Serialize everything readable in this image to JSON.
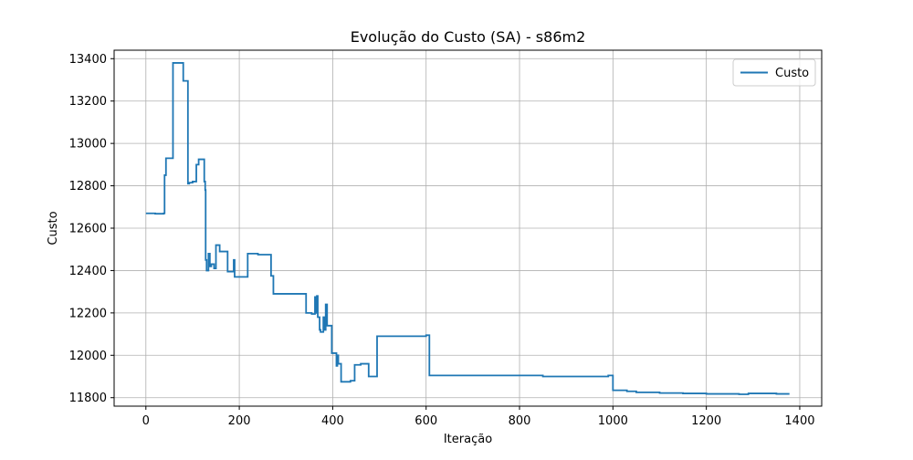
{
  "chart_data": {
    "type": "line",
    "title": "Evolução do Custo (SA) - s86m2",
    "xlabel": "Iteração",
    "ylabel": "Custo",
    "xlim": [
      -68,
      1447
    ],
    "ylim": [
      11760,
      13440
    ],
    "xticks": [
      0,
      200,
      400,
      600,
      800,
      1000,
      1200,
      1400
    ],
    "yticks": [
      11800,
      12000,
      12200,
      12400,
      12600,
      12800,
      13000,
      13200,
      13400
    ],
    "grid": true,
    "legend_position": "top-right",
    "series": [
      {
        "name": "Custo",
        "color": "#1f77b4",
        "step": true,
        "x": [
          0,
          20,
          38,
          40,
          43,
          56,
          58,
          78,
          80,
          88,
          90,
          93,
          100,
          108,
          113,
          120,
          125,
          127,
          128,
          130,
          134,
          137,
          140,
          146,
          150,
          158,
          170,
          175,
          185,
          188,
          190,
          200,
          215,
          218,
          240,
          260,
          268,
          273,
          278,
          300,
          340,
          343,
          355,
          362,
          364,
          366,
          368,
          372,
          374,
          380,
          382,
          385,
          388,
          392,
          398,
          405,
          408,
          410,
          412,
          418,
          438,
          447,
          460,
          473,
          477,
          481,
          492,
          495,
          500,
          520,
          550,
          580,
          600,
          605,
          607,
          620,
          650,
          700,
          750,
          800,
          850,
          900,
          950,
          975,
          990,
          995,
          1000,
          1030,
          1050,
          1100,
          1150,
          1170,
          1200,
          1270,
          1290,
          1350,
          1360,
          1378
        ],
        "y": [
          12670,
          12668,
          12670,
          12850,
          12930,
          12930,
          13380,
          13380,
          13295,
          13295,
          12810,
          12815,
          12820,
          12900,
          12925,
          12925,
          12820,
          12780,
          12450,
          12400,
          12480,
          12420,
          12430,
          12410,
          12520,
          12490,
          12490,
          12395,
          12395,
          12450,
          12370,
          12370,
          12370,
          12480,
          12475,
          12475,
          12375,
          12290,
          12290,
          12290,
          12290,
          12200,
          12195,
          12275,
          12200,
          12280,
          12180,
          12120,
          12110,
          12180,
          12120,
          12240,
          12140,
          12140,
          12010,
          12010,
          11950,
          12000,
          11960,
          11875,
          11880,
          11955,
          11960,
          11960,
          11900,
          11900,
          11900,
          12090,
          12090,
          12090,
          12090,
          12090,
          12095,
          12095,
          11905,
          11905,
          11905,
          11905,
          11905,
          11905,
          11900,
          11900,
          11900,
          11900,
          11905,
          11905,
          11835,
          11830,
          11825,
          11822,
          11820,
          11820,
          11818,
          11816,
          11820,
          11818,
          11818,
          11818
        ]
      }
    ]
  }
}
